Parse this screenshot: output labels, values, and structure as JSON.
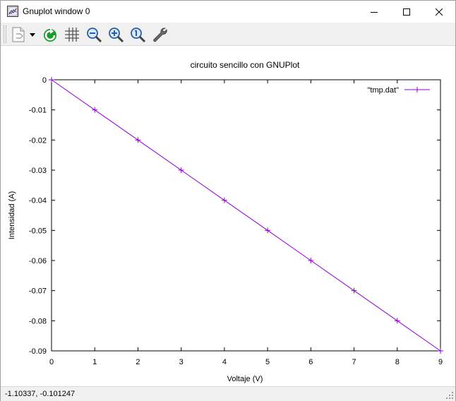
{
  "window": {
    "title": "Gnuplot window 0"
  },
  "toolbar": {
    "buttons": [
      {
        "name": "copy-clipboard-button",
        "icon": "clipboard-copy-icon"
      },
      {
        "name": "options-dropdown-button",
        "icon": "dropdown-arrow-icon"
      },
      {
        "name": "replot-button",
        "icon": "refresh-icon"
      },
      {
        "name": "grid-button",
        "icon": "grid-icon"
      },
      {
        "name": "zoom-previous-button",
        "icon": "zoom-out-icon"
      },
      {
        "name": "zoom-next-button",
        "icon": "zoom-in-icon"
      },
      {
        "name": "autoscale-button",
        "icon": "zoom-reset-icon"
      },
      {
        "name": "options-button",
        "icon": "wrench-icon"
      }
    ]
  },
  "status": {
    "coordinates": "-1.10337, -0.101247"
  },
  "colors": {
    "series": "#9400d3",
    "accent_refresh": "#1a9c2a"
  },
  "chart_data": {
    "type": "line",
    "title": "circuito sencillo con GNUPlot",
    "xlabel": "Voltaje (V)",
    "ylabel": "Intensidad (A)",
    "xlim": [
      0,
      9
    ],
    "ylim": [
      -0.09,
      0
    ],
    "x_ticks": [
      "0",
      "1",
      "2",
      "3",
      "4",
      "5",
      "6",
      "7",
      "8",
      "9"
    ],
    "y_ticks": [
      "0",
      "-0.01",
      "-0.02",
      "-0.03",
      "-0.04",
      "-0.05",
      "-0.06",
      "-0.07",
      "-0.08",
      "-0.09"
    ],
    "grid": false,
    "legend": "top-right",
    "series": [
      {
        "name": "\"tmp.dat\"",
        "x": [
          0,
          1,
          2,
          3,
          4,
          5,
          6,
          7,
          8,
          9
        ],
        "y": [
          0,
          -0.01,
          -0.02,
          -0.03,
          -0.04,
          -0.05,
          -0.06,
          -0.07,
          -0.08,
          -0.09
        ],
        "marker": "plus"
      }
    ]
  }
}
